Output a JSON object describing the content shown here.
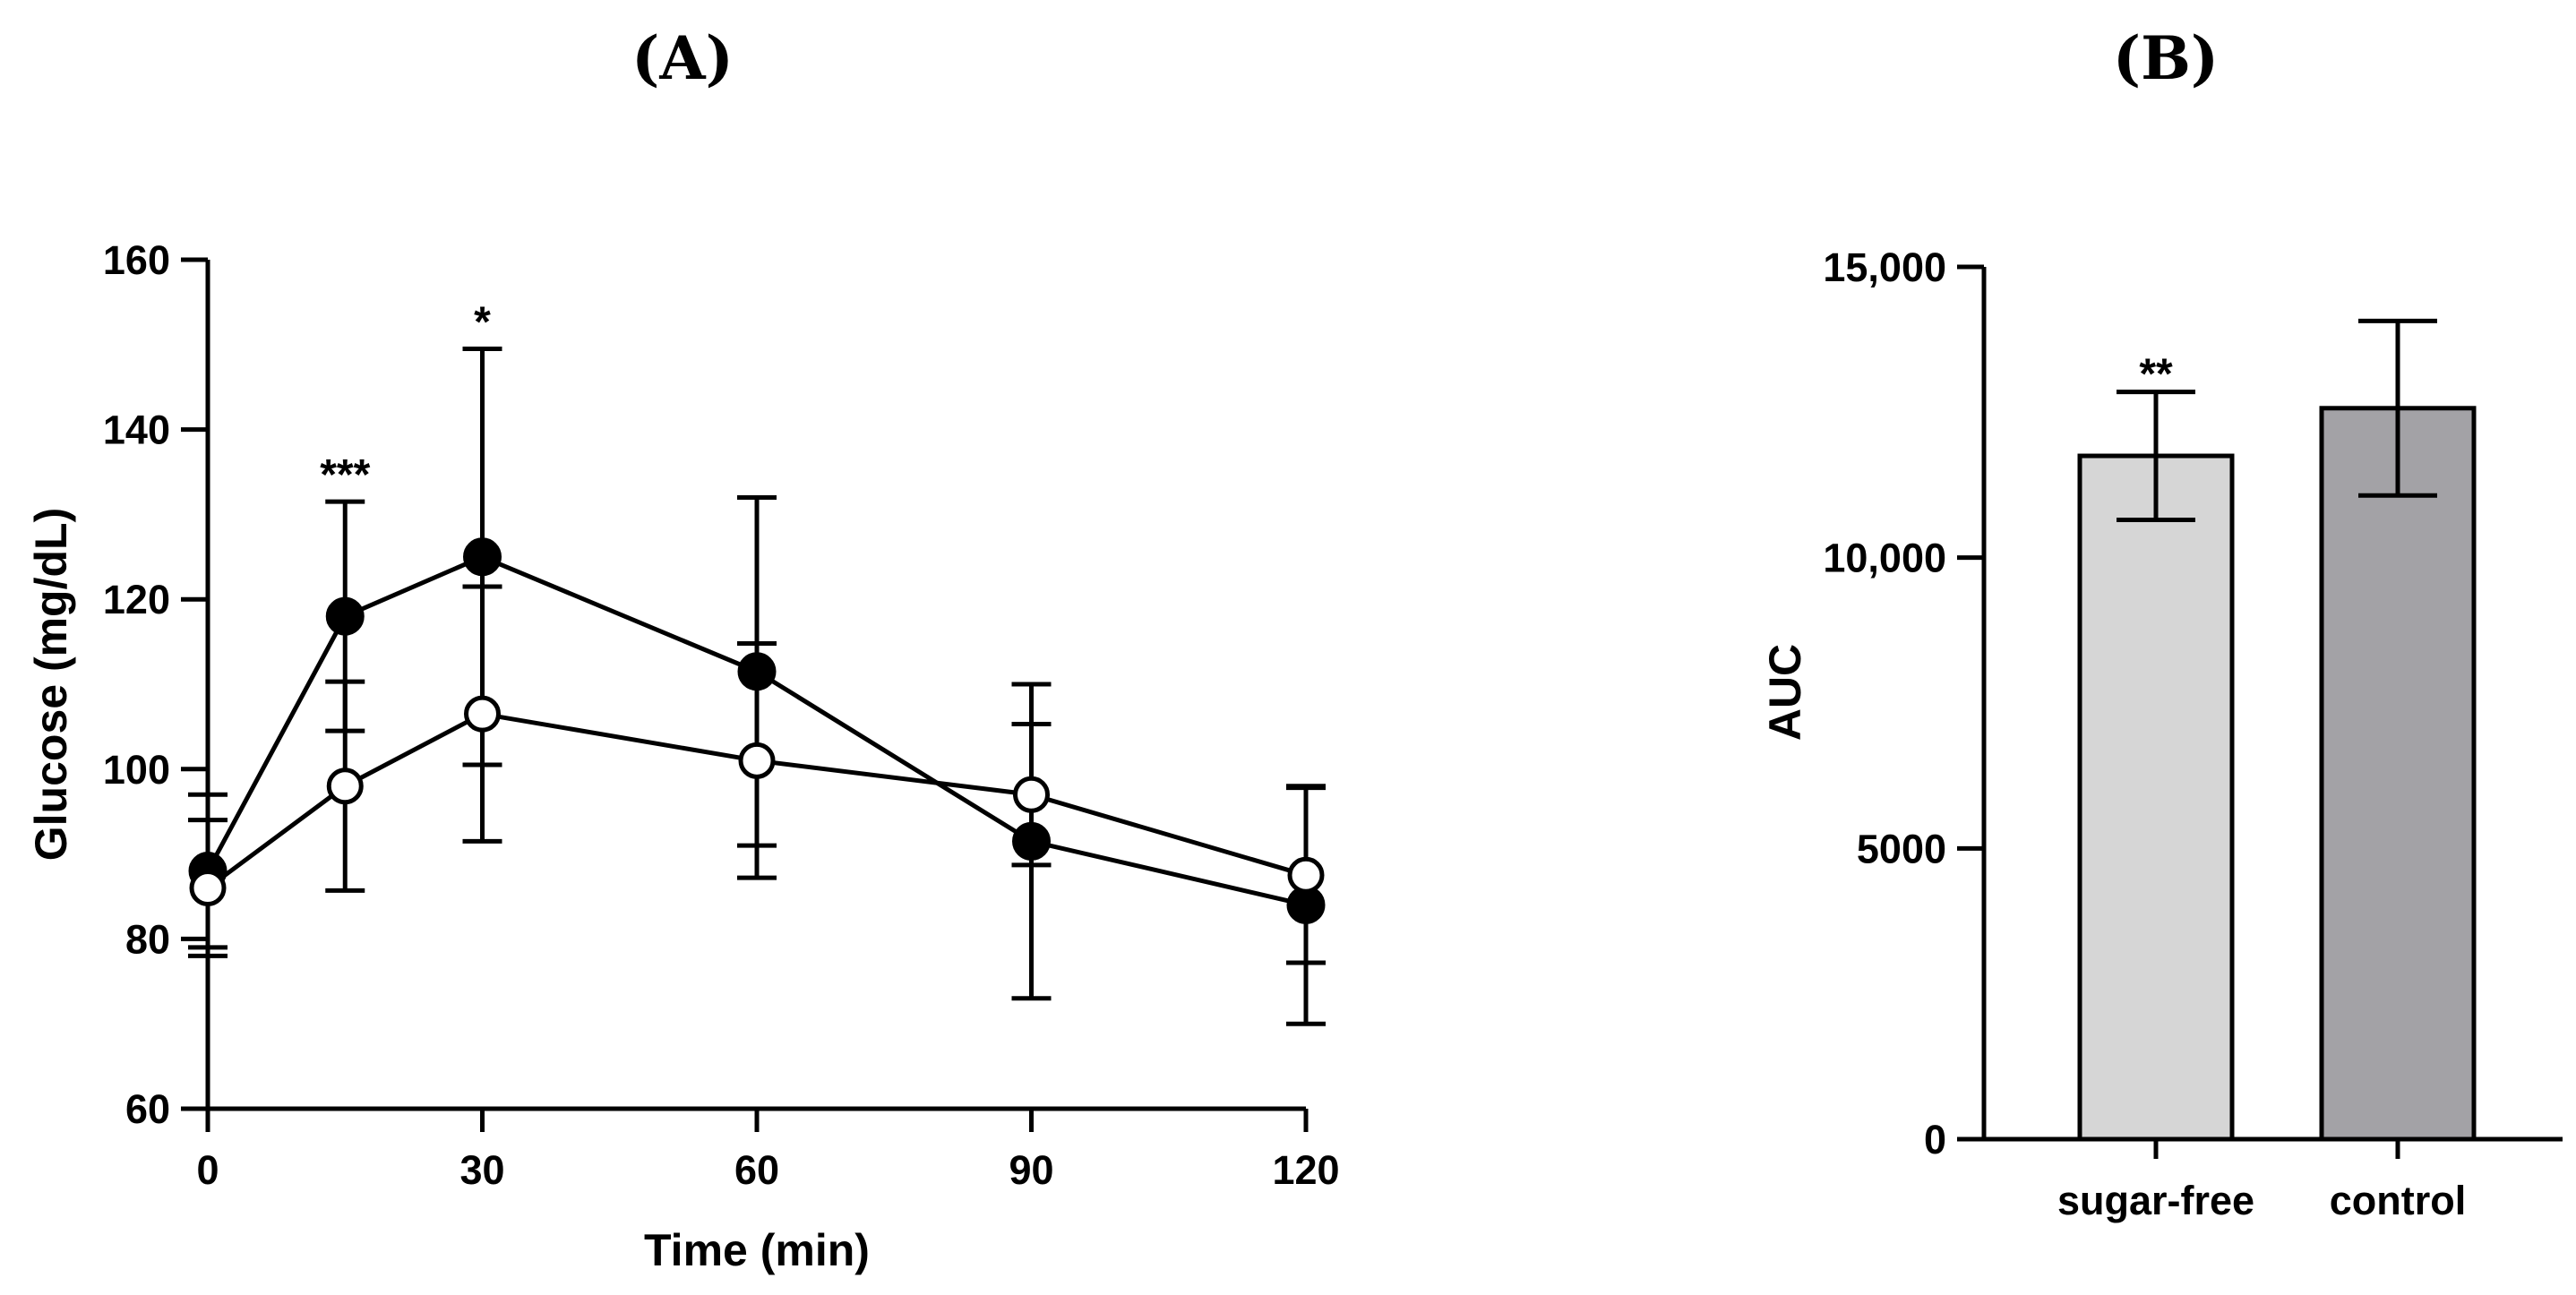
{
  "chart_data": [
    {
      "type": "line",
      "panel_label": "(A)",
      "xlabel": "Time (min)",
      "ylabel": "Glucose (mg/dL)",
      "xlim": [
        0,
        120
      ],
      "ylim": [
        60,
        160
      ],
      "x_ticks": [
        0,
        30,
        60,
        90,
        120
      ],
      "y_ticks": [
        60,
        80,
        100,
        120,
        140,
        160
      ],
      "x": [
        0,
        15,
        30,
        60,
        90,
        120
      ],
      "series": [
        {
          "name": "control",
          "marker": "filled-circle",
          "values": [
            88,
            118,
            125,
            111.5,
            91.5,
            84
          ],
          "error": [
            9,
            13.5,
            24.5,
            20.5,
            18.5,
            14
          ]
        },
        {
          "name": "sugar-free",
          "marker": "open-circle",
          "values": [
            86,
            98,
            106.5,
            101,
            97,
            87.5
          ],
          "error": [
            8,
            12.3,
            15,
            13.8,
            8.3,
            10.3
          ]
        }
      ],
      "annotations": [
        {
          "x": 15,
          "text": "***"
        },
        {
          "x": 30,
          "text": "*"
        }
      ]
    },
    {
      "type": "bar",
      "panel_label": "(B)",
      "xlabel": "",
      "ylabel": "AUC",
      "ylim": [
        0,
        15000
      ],
      "y_ticks": [
        0,
        5000,
        10000,
        15000
      ],
      "y_tick_labels": [
        "0",
        "5000",
        "10,000",
        "15,000"
      ],
      "categories": [
        "sugar-free",
        "control"
      ],
      "values": [
        11750,
        12570
      ],
      "error": [
        1100,
        1500
      ],
      "colors": [
        "#d6d6d6",
        "#a3a2a6"
      ],
      "annotations": [
        {
          "category": "sugar-free",
          "text": "**"
        }
      ]
    }
  ]
}
